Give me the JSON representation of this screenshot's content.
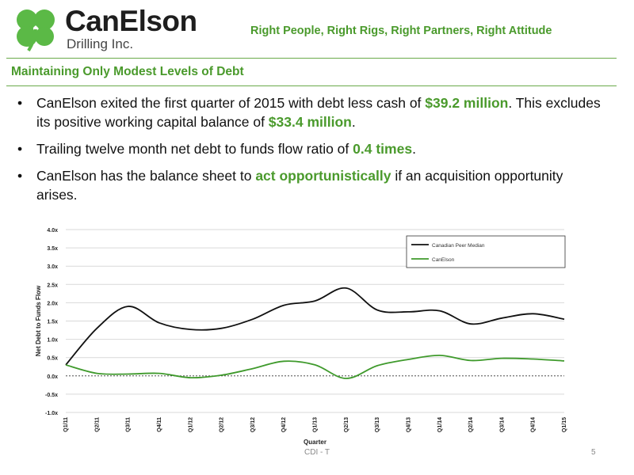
{
  "header": {
    "logo_name": "CanElson",
    "logo_sub": "Drilling Inc.",
    "tagline": "Right People, Right Rigs, Right Partners, Right Attitude",
    "colors": {
      "accent": "#4a9a2c",
      "logo_green": "#5bb946"
    }
  },
  "section_title": "Maintaining Only Modest Levels of Debt",
  "bullets": [
    {
      "parts": [
        {
          "text": "CanElson exited the first quarter of 2015 with debt less cash of "
        },
        {
          "text": "$39.2 million",
          "hl": true
        },
        {
          "text": ". This excludes its positive working capital balance of "
        },
        {
          "text": "$33.4 million",
          "hl": true
        },
        {
          "text": "."
        }
      ]
    },
    {
      "parts": [
        {
          "text": "Trailing twelve month net debt to funds flow ratio of "
        },
        {
          "text": "0.4 times",
          "hl": true
        },
        {
          "text": "."
        }
      ]
    },
    {
      "parts": [
        {
          "text": "CanElson has the balance sheet to "
        },
        {
          "text": "act opportunistically",
          "hl": true
        },
        {
          "text": " if an acquisition opportunity arises."
        }
      ]
    }
  ],
  "chart_data": {
    "type": "line",
    "xlabel": "Quarter",
    "ylabel": "Net Debt to Funds Flow",
    "ylim": [
      -1.0,
      4.0
    ],
    "yticks": [
      "-1.0x",
      "-0.5x",
      "0.0x",
      "0.5x",
      "1.0x",
      "1.5x",
      "2.0x",
      "2.5x",
      "3.0x",
      "3.5x",
      "4.0x"
    ],
    "ytick_values": [
      -1.0,
      -0.5,
      0.0,
      0.5,
      1.0,
      1.5,
      2.0,
      2.5,
      3.0,
      3.5,
      4.0
    ],
    "categories": [
      "Q1/11",
      "Q2/11",
      "Q3/11",
      "Q4/11",
      "Q1/12",
      "Q2/12",
      "Q3/12",
      "Q4/12",
      "Q1/13",
      "Q2/13",
      "Q3/13",
      "Q4/13",
      "Q1/14",
      "Q2/14",
      "Q3/14",
      "Q4/14",
      "Q1/15"
    ],
    "grid": true,
    "zero_line": "dashed",
    "legend_position": "top-right",
    "series": [
      {
        "name": "Canadian Peer Median",
        "color": "#111111",
        "values": [
          0.3,
          1.3,
          1.9,
          1.45,
          1.27,
          1.3,
          1.55,
          1.93,
          2.05,
          2.4,
          1.8,
          1.75,
          1.78,
          1.42,
          1.58,
          1.7,
          1.55
        ]
      },
      {
        "name": "CanElson",
        "color": "#3f9a2c",
        "values": [
          0.3,
          0.07,
          0.05,
          0.07,
          -0.05,
          0.02,
          0.2,
          0.4,
          0.3,
          -0.07,
          0.28,
          0.45,
          0.56,
          0.42,
          0.48,
          0.46,
          0.41
        ]
      }
    ]
  },
  "footer": {
    "center": "CDI - T",
    "page_number": "5"
  }
}
